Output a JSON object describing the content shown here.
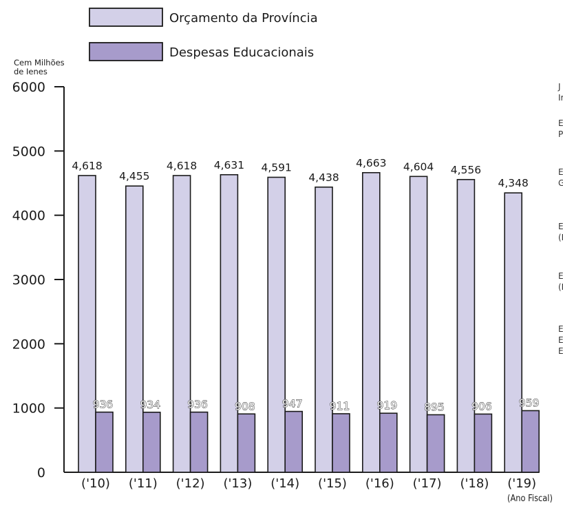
{
  "chart_data": {
    "type": "bar",
    "y_unit_lines": [
      "Cem Milhões",
      "de Ienes"
    ],
    "x_unit_label": "(Ano Fiscal)",
    "categories": [
      "('10)",
      "('11)",
      "('12)",
      "('13)",
      "('14)",
      "('15)",
      "('16)",
      "('17)",
      "('18)",
      "('19)"
    ],
    "y_ticks": [
      "0",
      "1000",
      "2000",
      "3000",
      "4000",
      "5000",
      "6000"
    ],
    "ylim": [
      0,
      6000
    ],
    "grid": false,
    "legend_position": "top",
    "series": [
      {
        "name": "Orçamento da Província",
        "color": "#d3d0e8",
        "values": [
          4618,
          4455,
          4618,
          4631,
          4591,
          4438,
          4663,
          4604,
          4556,
          4348
        ],
        "labels": [
          "4,618",
          "4,455",
          "4,618",
          "4,631",
          "4,591",
          "4,438",
          "4,663",
          "4,604",
          "4,556",
          "4,348"
        ]
      },
      {
        "name": "Despesas Educacionais",
        "color": "#a79bcb",
        "values": [
          936,
          934,
          936,
          908,
          947,
          911,
          919,
          895,
          906,
          959
        ],
        "labels": [
          "936",
          "934",
          "936",
          "908",
          "947",
          "911",
          "919",
          "895",
          "906",
          "959"
        ]
      }
    ],
    "cut_off_side_text": [
      [
        "J",
        "Ir"
      ],
      [
        "E",
        "P"
      ],
      [
        "E",
        "G"
      ],
      [
        "E",
        "(F"
      ],
      [
        "E",
        "(I"
      ],
      [
        "E",
        "E",
        "E"
      ]
    ]
  }
}
